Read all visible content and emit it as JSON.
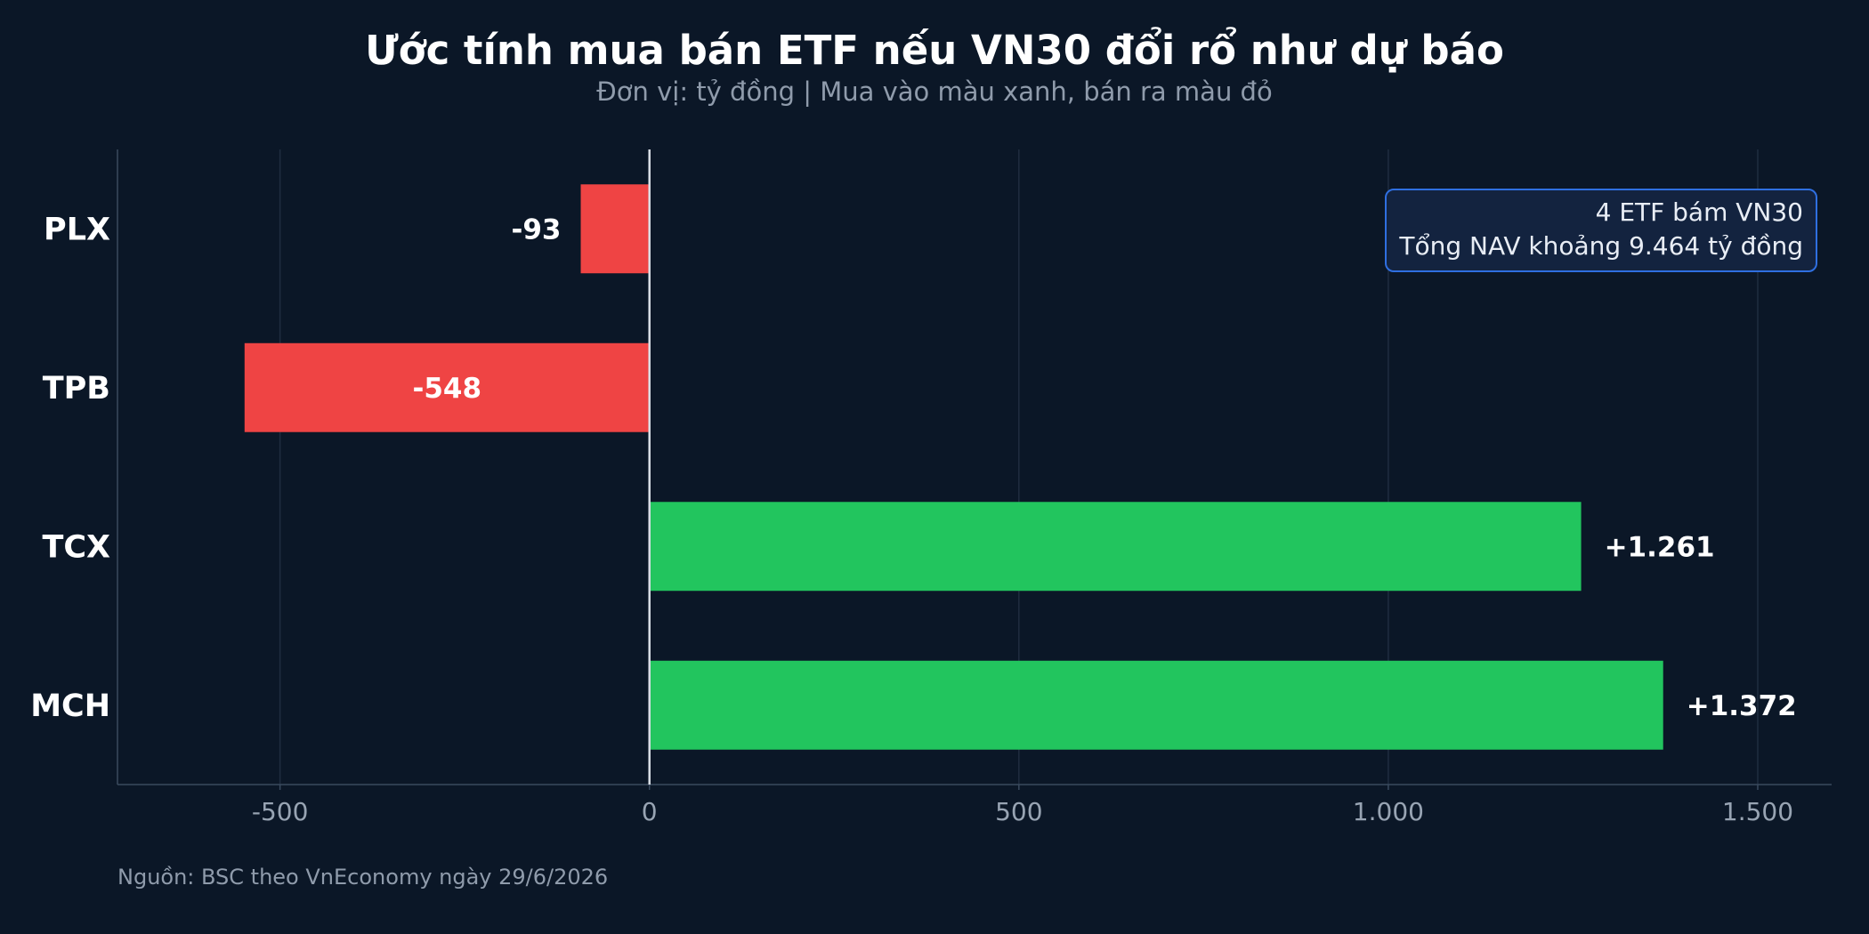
{
  "header": {
    "title": "Ước tính mua bán ETF nếu VN30 đổi rổ như dự báo",
    "subtitle": "Đơn vị: tỷ đồng | Mua vào màu xanh, bán ra màu đỏ"
  },
  "annotation": {
    "line1": "4 ETF bám VN30",
    "line2": "Tổng NAV khoảng 9.464 tỷ đồng"
  },
  "footer": {
    "source": "Nguồn: BSC theo VnEconomy ngày 29/6/2026"
  },
  "colors": {
    "background": "#0b1727",
    "buy": "#22c55e",
    "sell": "#ef4444",
    "grid": "#1f2d40",
    "axis": "#3a4a5e",
    "zero_line": "#d9dee6",
    "tick_text": "#98a4b3",
    "box_border": "#2f6fe0"
  },
  "chart_data": {
    "type": "bar",
    "orientation": "horizontal",
    "categories": [
      "PLX",
      "TPB",
      "TCX",
      "MCH"
    ],
    "values": [
      -93,
      -548,
      1261,
      1372
    ],
    "value_labels": [
      "-93",
      "-548",
      "+1.261",
      "+1.372"
    ],
    "xlim": [
      -720,
      1600
    ],
    "xticks": [
      -500,
      0,
      500,
      1000,
      1500
    ],
    "xtick_labels": [
      "-500",
      "0",
      "500",
      "1.000",
      "1.500"
    ],
    "grid": true,
    "xlabel": "",
    "ylabel": ""
  }
}
